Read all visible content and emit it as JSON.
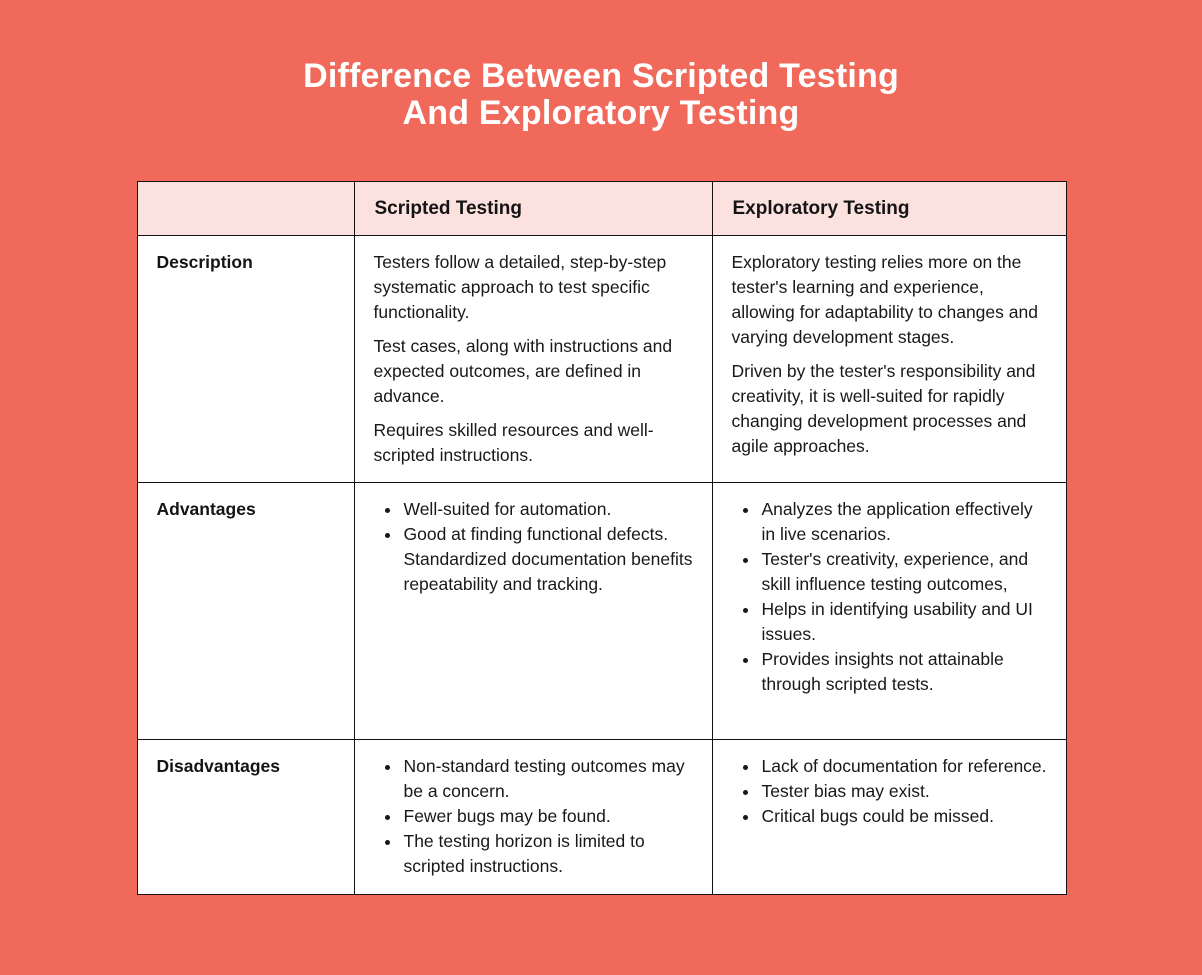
{
  "page": {
    "background_color": "#F0695A",
    "title_line1": "Difference Between Scripted Testing",
    "title_line2": "And Exploratory Testing",
    "title_color": "#FFFFFF"
  },
  "table": {
    "header": {
      "row_label_column": "",
      "scripted_label": "Scripted Testing",
      "exploratory_label": "Exploratory Testing",
      "background_color": "#FBE2DE",
      "border_color": "#171010"
    },
    "rows": [
      {
        "label": "Description",
        "scripted": {
          "format": "paragraphs",
          "items": [
            "Testers follow a detailed, step-by-step systematic approach to test specific functionality.",
            "Test cases, along with instructions and expected outcomes, are defined in advance.",
            "Requires skilled resources and well-scripted instructions."
          ]
        },
        "exploratory": {
          "format": "paragraphs",
          "items": [
            "Exploratory testing relies more on the tester's learning and experience, allowing for adaptability to changes and varying development stages.",
            "Driven by the tester's responsibility and creativity, it is well-suited for rapidly changing development processes and agile approaches."
          ]
        }
      },
      {
        "label": "Advantages",
        "scripted": {
          "format": "bullets",
          "items": [
            "Well-suited for automation.",
            "Good at finding functional defects. Standardized documentation benefits repeatability and tracking."
          ]
        },
        "exploratory": {
          "format": "bullets",
          "items": [
            "Analyzes the application effectively in live scenarios.",
            "Tester's creativity, experience, and skill influence testing outcomes,",
            "Helps in identifying usability and UI issues.",
            "Provides insights not attainable through scripted tests."
          ]
        }
      },
      {
        "label": "Disadvantages",
        "scripted": {
          "format": "bullets",
          "items": [
            "Non-standard testing outcomes may be a concern.",
            "Fewer bugs may be found.",
            "The testing horizon is limited to scripted instructions."
          ]
        },
        "exploratory": {
          "format": "bullets",
          "items": [
            "Lack of documentation for reference.",
            "Tester bias may exist.",
            "Critical bugs could be missed."
          ]
        }
      }
    ]
  }
}
